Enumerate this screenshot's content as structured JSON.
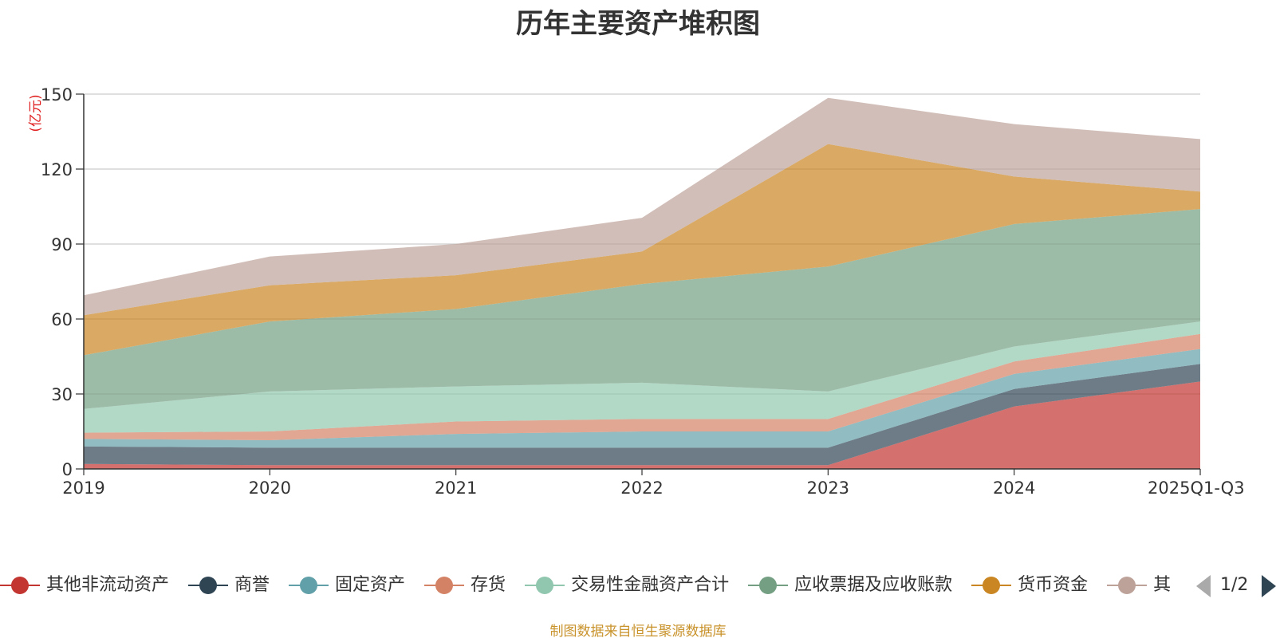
{
  "chart_data": {
    "type": "area",
    "title": "历年主要资产堆积图",
    "unit_label": "(亿元)",
    "source_note": "制图数据来自恒生聚源数据库",
    "categories": [
      "2019",
      "2020",
      "2021",
      "2022",
      "2023",
      "2024",
      "2025Q1-Q3"
    ],
    "ylim": [
      0,
      150
    ],
    "yticks": [
      0,
      30,
      60,
      90,
      120,
      150
    ],
    "grid": true,
    "stacked": true,
    "series": [
      {
        "name": "其他非流动资产",
        "color": "#c23531",
        "values": [
          2,
          1.5,
          1.5,
          1.5,
          1.5,
          25,
          35
        ]
      },
      {
        "name": "商誉",
        "color": "#2f4554",
        "values": [
          7,
          7,
          7,
          7,
          7,
          7,
          7
        ]
      },
      {
        "name": "固定资产",
        "color": "#61a0a8",
        "values": [
          3,
          3,
          5.5,
          6.5,
          6.5,
          6,
          6
        ]
      },
      {
        "name": "存货",
        "color": "#d48265",
        "values": [
          2.5,
          3.5,
          5,
          5,
          5,
          5,
          6
        ]
      },
      {
        "name": "交易性金融资产合计",
        "color": "#91c7ae",
        "values": [
          9.5,
          16,
          14,
          14.5,
          11,
          6,
          5
        ]
      },
      {
        "name": "应收票据及应收账款",
        "color": "#749f83",
        "values": [
          21.5,
          28,
          31,
          39.5,
          50,
          49,
          45
        ]
      },
      {
        "name": "货币资金",
        "color": "#ca8622",
        "values": [
          16,
          14.5,
          13.5,
          13,
          49,
          19,
          7
        ]
      },
      {
        "name": "其他",
        "color": "#bda29a",
        "values": [
          8,
          11.5,
          12.5,
          13.5,
          18.5,
          21,
          21
        ]
      }
    ]
  },
  "legend": {
    "visible_count": 8,
    "page": "1/2"
  }
}
